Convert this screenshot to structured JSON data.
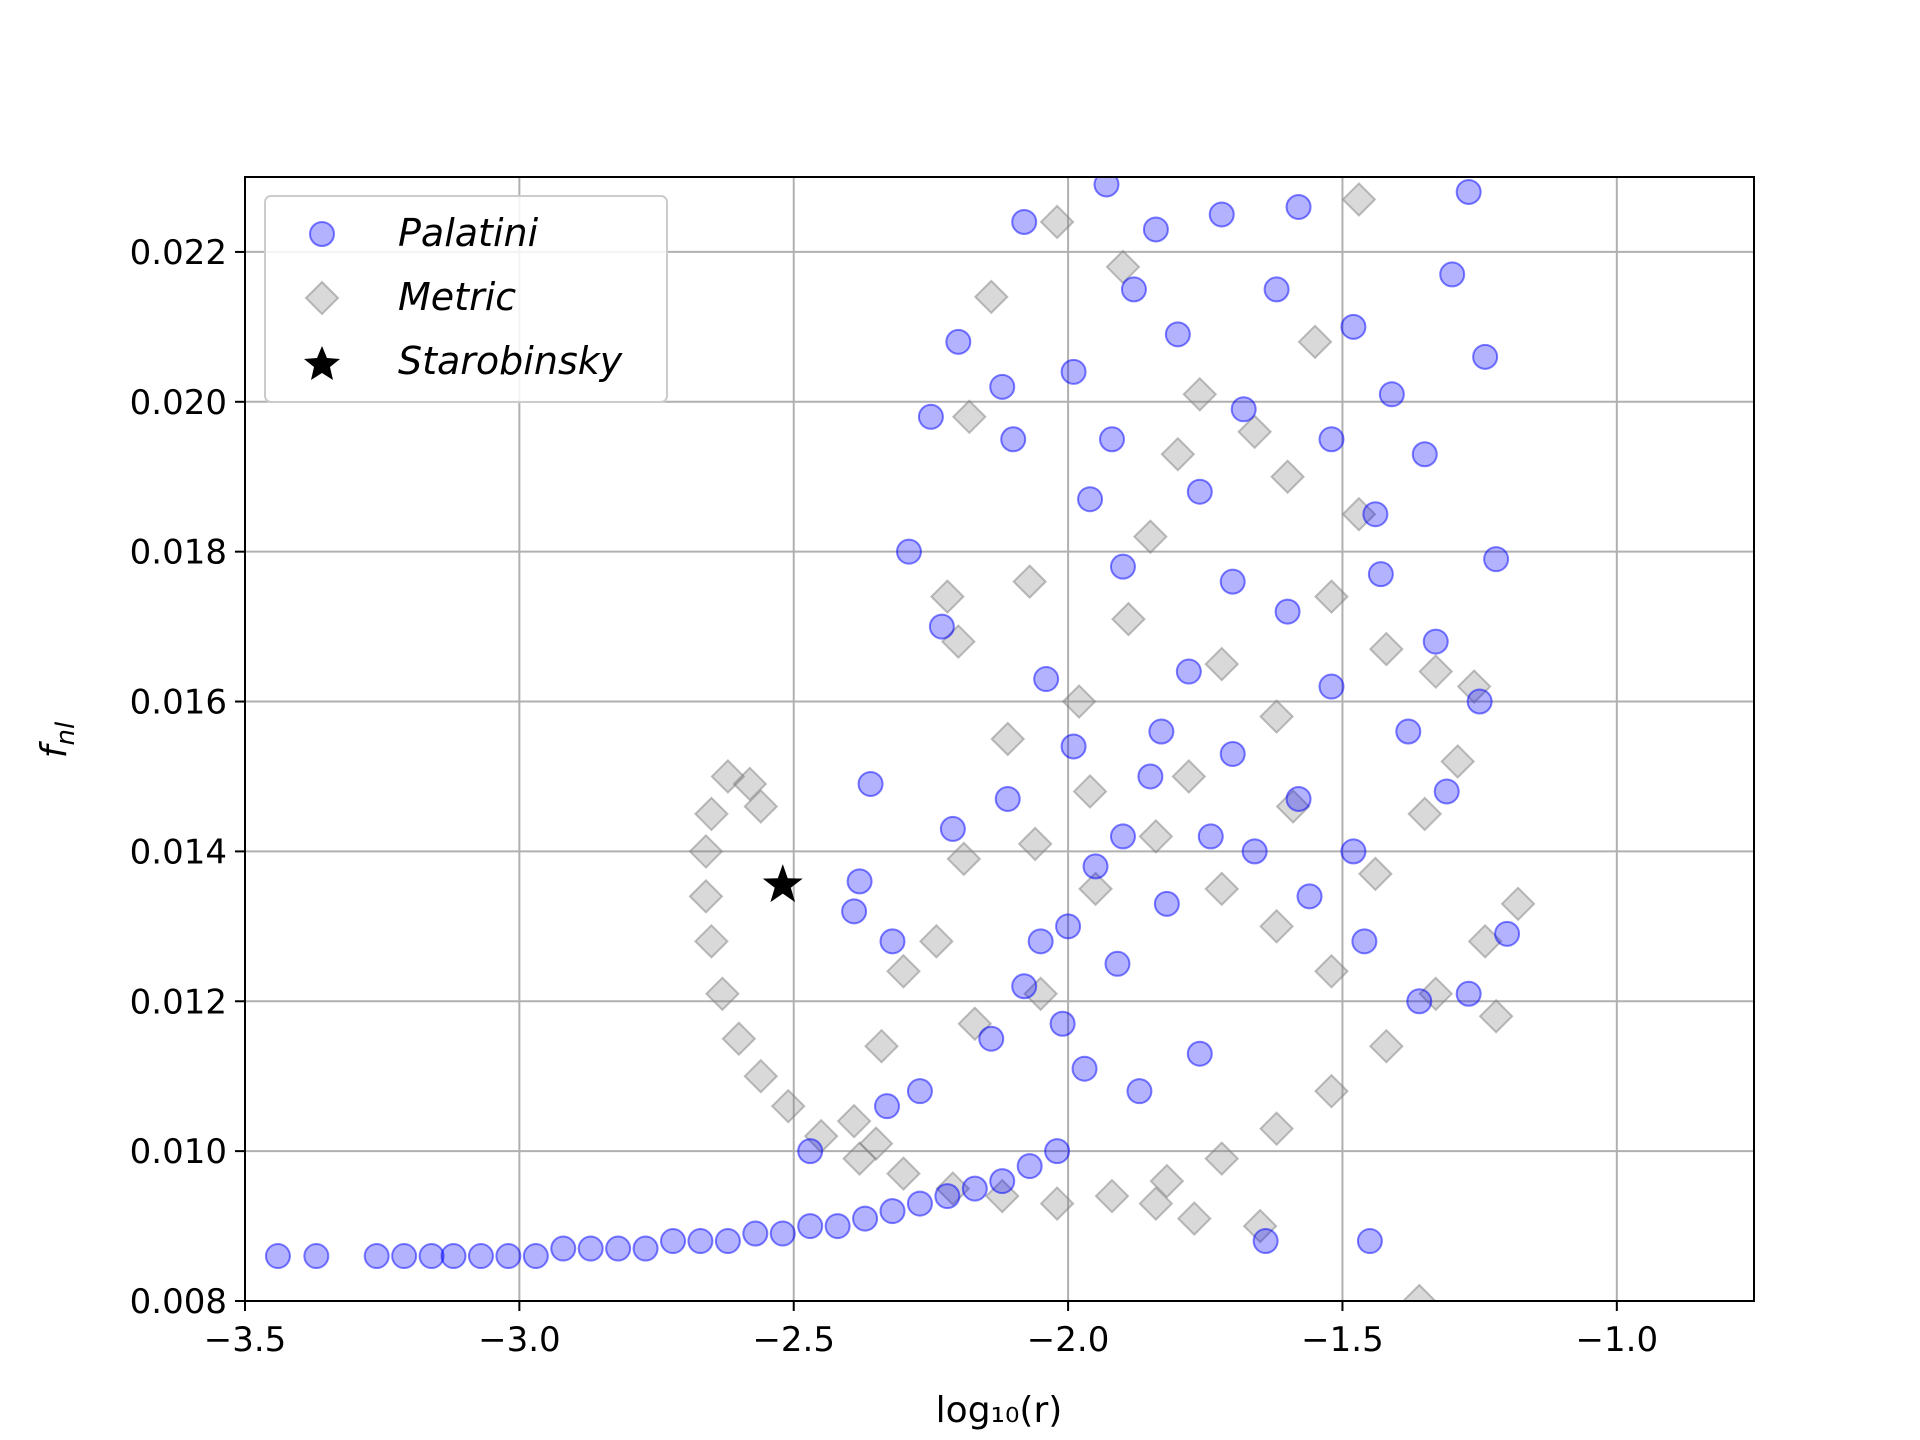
{
  "chart_data": {
    "type": "scatter",
    "title": "",
    "xlabel": "log₁₀(r)",
    "ylabel_main": "f",
    "ylabel_sub": "nl",
    "xlim": [
      -3.5,
      -0.75
    ],
    "ylim": [
      0.008,
      0.023
    ],
    "grid": true,
    "legend_position": "top-left",
    "x_ticks": [
      -3.5,
      -3.0,
      -2.5,
      -2.0,
      -1.5,
      -1.0
    ],
    "x_tick_labels": [
      "−3.5",
      "−3.0",
      "−2.5",
      "−2.0",
      "−1.5",
      "−1.0"
    ],
    "y_ticks": [
      0.008,
      0.01,
      0.012,
      0.014,
      0.016,
      0.018,
      0.02,
      0.022
    ],
    "y_tick_labels": [
      "0.008",
      "0.010",
      "0.012",
      "0.014",
      "0.016",
      "0.018",
      "0.020",
      "0.022"
    ],
    "series": [
      {
        "name": "Palatini",
        "marker": "circle",
        "color": "#0000ff",
        "fill_opacity": 0.3,
        "points": [
          [
            -3.44,
            0.0086
          ],
          [
            -3.37,
            0.0086
          ],
          [
            -3.26,
            0.0086
          ],
          [
            -3.21,
            0.0086
          ],
          [
            -3.16,
            0.0086
          ],
          [
            -3.12,
            0.0086
          ],
          [
            -3.07,
            0.0086
          ],
          [
            -3.02,
            0.0086
          ],
          [
            -2.97,
            0.0086
          ],
          [
            -2.92,
            0.0087
          ],
          [
            -2.87,
            0.0087
          ],
          [
            -2.82,
            0.0087
          ],
          [
            -2.77,
            0.0087
          ],
          [
            -2.72,
            0.0088
          ],
          [
            -2.67,
            0.0088
          ],
          [
            -2.62,
            0.0088
          ],
          [
            -2.57,
            0.0089
          ],
          [
            -2.52,
            0.0089
          ],
          [
            -2.47,
            0.009
          ],
          [
            -2.42,
            0.009
          ],
          [
            -2.37,
            0.0091
          ],
          [
            -2.32,
            0.0092
          ],
          [
            -2.27,
            0.0093
          ],
          [
            -2.22,
            0.0094
          ],
          [
            -2.17,
            0.0095
          ],
          [
            -2.12,
            0.0096
          ],
          [
            -2.07,
            0.0098
          ],
          [
            -2.02,
            0.01
          ],
          [
            -1.99,
            0.0204
          ],
          [
            -2.08,
            0.0224
          ],
          [
            -2.2,
            0.0208
          ],
          [
            -2.29,
            0.018
          ],
          [
            -2.25,
            0.0198
          ],
          [
            -2.36,
            0.0149
          ],
          [
            -2.38,
            0.0136
          ],
          [
            -2.39,
            0.0132
          ],
          [
            -2.32,
            0.0128
          ],
          [
            -2.21,
            0.0143
          ],
          [
            -2.23,
            0.017
          ],
          [
            -2.1,
            0.0195
          ],
          [
            -2.12,
            0.0202
          ],
          [
            -1.96,
            0.0187
          ],
          [
            -1.92,
            0.0195
          ],
          [
            -1.88,
            0.0215
          ],
          [
            -1.8,
            0.0209
          ],
          [
            -1.84,
            0.0223
          ],
          [
            -1.93,
            0.0229
          ],
          [
            -1.72,
            0.0225
          ],
          [
            -1.62,
            0.0215
          ],
          [
            -1.58,
            0.0226
          ],
          [
            -1.48,
            0.021
          ],
          [
            -1.44,
            0.0185
          ],
          [
            -1.41,
            0.0201
          ],
          [
            -1.35,
            0.0193
          ],
          [
            -1.3,
            0.0217
          ],
          [
            -1.27,
            0.0228
          ],
          [
            -1.24,
            0.0206
          ],
          [
            -1.22,
            0.0179
          ],
          [
            -1.25,
            0.016
          ],
          [
            -1.31,
            0.0148
          ],
          [
            -1.38,
            0.0156
          ],
          [
            -1.52,
            0.0162
          ],
          [
            -1.6,
            0.0172
          ],
          [
            -1.7,
            0.0176
          ],
          [
            -1.78,
            0.0164
          ],
          [
            -1.85,
            0.015
          ],
          [
            -1.95,
            0.0138
          ],
          [
            -2.0,
            0.013
          ],
          [
            -2.08,
            0.0122
          ],
          [
            -2.14,
            0.0115
          ],
          [
            -2.27,
            0.0108
          ],
          [
            -2.33,
            0.0106
          ],
          [
            -2.47,
            0.01
          ],
          [
            -2.01,
            0.0117
          ],
          [
            -1.91,
            0.0125
          ],
          [
            -1.82,
            0.0133
          ],
          [
            -1.74,
            0.0142
          ],
          [
            -1.66,
            0.014
          ],
          [
            -1.56,
            0.0134
          ],
          [
            -1.46,
            0.0128
          ],
          [
            -1.36,
            0.012
          ],
          [
            -1.27,
            0.0121
          ],
          [
            -1.2,
            0.0129
          ],
          [
            -1.64,
            0.0088
          ],
          [
            -1.45,
            0.0088
          ],
          [
            -1.97,
            0.0111
          ],
          [
            -1.87,
            0.0108
          ],
          [
            -1.76,
            0.0113
          ],
          [
            -2.05,
            0.0128
          ],
          [
            -1.83,
            0.0156
          ],
          [
            -1.76,
            0.0188
          ],
          [
            -1.68,
            0.0199
          ],
          [
            -1.52,
            0.0195
          ],
          [
            -1.43,
            0.0177
          ],
          [
            -1.33,
            0.0168
          ],
          [
            -1.9,
            0.0178
          ],
          [
            -2.04,
            0.0163
          ],
          [
            -2.11,
            0.0147
          ],
          [
            -1.99,
            0.0154
          ],
          [
            -1.9,
            0.0142
          ],
          [
            -1.7,
            0.0153
          ],
          [
            -1.58,
            0.0147
          ],
          [
            -1.48,
            0.014
          ]
        ]
      },
      {
        "name": "Metric",
        "marker": "diamond",
        "color": "#808080",
        "fill_opacity": 0.3,
        "points": [
          [
            -2.62,
            0.015
          ],
          [
            -2.58,
            0.0149
          ],
          [
            -2.56,
            0.0146
          ],
          [
            -2.65,
            0.0145
          ],
          [
            -2.66,
            0.014
          ],
          [
            -2.66,
            0.0134
          ],
          [
            -2.65,
            0.0128
          ],
          [
            -2.63,
            0.0121
          ],
          [
            -2.6,
            0.0115
          ],
          [
            -2.56,
            0.011
          ],
          [
            -2.51,
            0.0106
          ],
          [
            -2.45,
            0.0102
          ],
          [
            -2.38,
            0.0099
          ],
          [
            -2.3,
            0.0097
          ],
          [
            -2.21,
            0.0095
          ],
          [
            -2.12,
            0.0094
          ],
          [
            -2.02,
            0.0093
          ],
          [
            -1.92,
            0.0094
          ],
          [
            -1.82,
            0.0096
          ],
          [
            -1.72,
            0.0099
          ],
          [
            -1.62,
            0.0103
          ],
          [
            -1.52,
            0.0108
          ],
          [
            -1.42,
            0.0114
          ],
          [
            -1.33,
            0.0121
          ],
          [
            -1.24,
            0.0128
          ],
          [
            -1.18,
            0.0133
          ],
          [
            -2.02,
            0.0224
          ],
          [
            -1.9,
            0.0218
          ],
          [
            -1.76,
            0.0201
          ],
          [
            -1.66,
            0.0196
          ],
          [
            -1.55,
            0.0208
          ],
          [
            -1.47,
            0.0227
          ],
          [
            -2.14,
            0.0214
          ],
          [
            -2.18,
            0.0198
          ],
          [
            -1.85,
            0.0182
          ],
          [
            -2.22,
            0.0174
          ],
          [
            -2.2,
            0.0168
          ],
          [
            -2.07,
            0.0176
          ],
          [
            -1.98,
            0.016
          ],
          [
            -1.89,
            0.0171
          ],
          [
            -1.72,
            0.0165
          ],
          [
            -1.62,
            0.0158
          ],
          [
            -1.52,
            0.0174
          ],
          [
            -1.42,
            0.0167
          ],
          [
            -1.33,
            0.0164
          ],
          [
            -1.26,
            0.0162
          ],
          [
            -2.11,
            0.0155
          ],
          [
            -2.19,
            0.0139
          ],
          [
            -2.24,
            0.0128
          ],
          [
            -2.17,
            0.0117
          ],
          [
            -2.05,
            0.0121
          ],
          [
            -1.95,
            0.0135
          ],
          [
            -1.84,
            0.0142
          ],
          [
            -1.72,
            0.0135
          ],
          [
            -1.62,
            0.013
          ],
          [
            -1.52,
            0.0124
          ],
          [
            -1.22,
            0.0118
          ],
          [
            -1.84,
            0.0093
          ],
          [
            -1.77,
            0.0091
          ],
          [
            -1.65,
            0.009
          ],
          [
            -1.36,
            0.008
          ],
          [
            -2.06,
            0.0141
          ],
          [
            -1.96,
            0.0148
          ],
          [
            -1.78,
            0.015
          ],
          [
            -1.59,
            0.0146
          ],
          [
            -1.44,
            0.0137
          ],
          [
            -1.35,
            0.0145
          ],
          [
            -1.29,
            0.0152
          ],
          [
            -1.47,
            0.0185
          ],
          [
            -1.6,
            0.019
          ],
          [
            -1.8,
            0.0193
          ],
          [
            -2.3,
            0.0124
          ],
          [
            -2.34,
            0.0114
          ],
          [
            -2.39,
            0.0104
          ],
          [
            -2.35,
            0.0101
          ]
        ]
      },
      {
        "name": "Starobinsky",
        "marker": "star",
        "color": "#000000",
        "fill_opacity": 1,
        "points": [
          [
            -2.52,
            0.01355
          ]
        ]
      }
    ]
  },
  "legend": {
    "items": [
      {
        "label": "Palatini",
        "icon": "circle-marker-icon",
        "color": "#0000ff"
      },
      {
        "label": "Metric",
        "icon": "diamond-marker-icon",
        "color": "#808080"
      },
      {
        "label": "Starobinsky",
        "icon": "star-marker-icon",
        "color": "#000000"
      }
    ]
  }
}
